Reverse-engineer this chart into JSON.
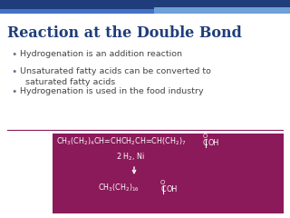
{
  "title": "Reaction at the Double Bond",
  "title_color": "#1F3D7A",
  "title_fontsize": 11.5,
  "bg_color": "#FFFFFF",
  "bullet_color": "#444444",
  "bullet_fontsize": 6.8,
  "bullet_dot_color": "#7B6A8A",
  "bullets": [
    "Hydrogenation is an addition reaction",
    "Unsaturated fatty acids can be converted to\n  saturated fatty acids",
    "Hydrogenation is used in the food industry"
  ],
  "box_bg": "#8B1A5A",
  "box_color": "#FFFFFF",
  "top_bar_color": "#1F3D7A",
  "top_bar2_color": "#4472C4",
  "line1_fs": 5.8,
  "line2_fs": 5.8,
  "line3_fs": 5.8
}
